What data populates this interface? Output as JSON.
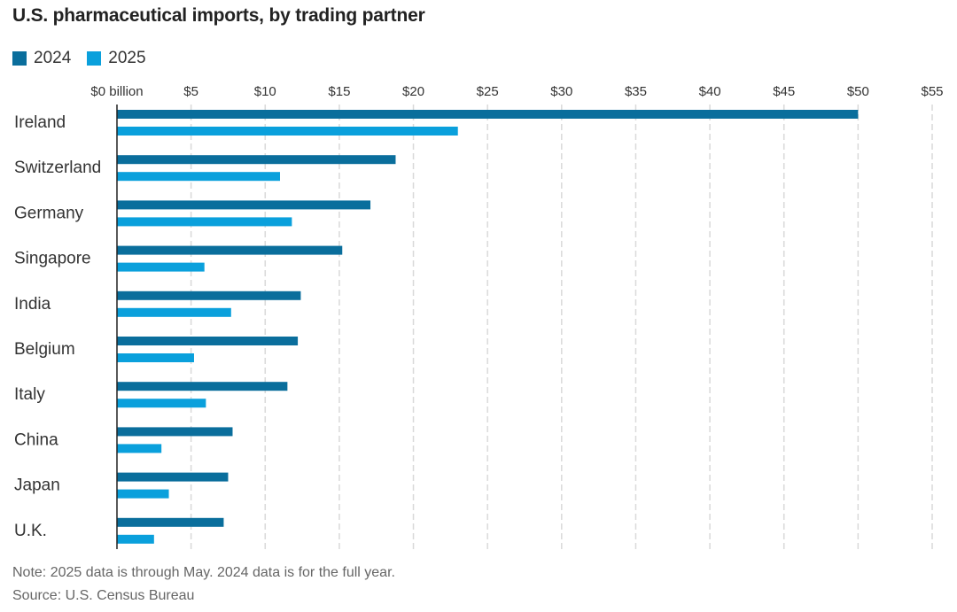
{
  "title": "U.S. pharmaceutical imports, by trading partner",
  "legend": [
    {
      "label": "2024",
      "color": "#0a6e9c"
    },
    {
      "label": "2025",
      "color": "#0aa0dc"
    }
  ],
  "footer": {
    "note": "Note: 2025 data is through May. 2024 data is for the full year.",
    "source": "Source: U.S. Census Bureau"
  },
  "chart_data": {
    "type": "bar",
    "orientation": "horizontal",
    "title": "U.S. pharmaceutical imports, by trading partner",
    "categories": [
      "Ireland",
      "Switzerland",
      "Germany",
      "Singapore",
      "India",
      "Belgium",
      "Italy",
      "China",
      "Japan",
      "U.K."
    ],
    "series": [
      {
        "name": "2024",
        "color": "#0a6e9c",
        "values": [
          50.0,
          18.8,
          17.1,
          15.2,
          12.4,
          12.2,
          11.5,
          7.8,
          7.5,
          7.2
        ]
      },
      {
        "name": "2025",
        "color": "#0aa0dc",
        "values": [
          23.0,
          11.0,
          11.8,
          5.9,
          7.7,
          5.2,
          6.0,
          3.0,
          3.5,
          2.5
        ]
      }
    ],
    "xlim": [
      0,
      55
    ],
    "x_ticks": [
      {
        "value": 0,
        "label": "$0 billion"
      },
      {
        "value": 5,
        "label": "$5"
      },
      {
        "value": 10,
        "label": "$10"
      },
      {
        "value": 15,
        "label": "$15"
      },
      {
        "value": 20,
        "label": "$20"
      },
      {
        "value": 25,
        "label": "$25"
      },
      {
        "value": 30,
        "label": "$30"
      },
      {
        "value": 35,
        "label": "$35"
      },
      {
        "value": 40,
        "label": "$40"
      },
      {
        "value": 45,
        "label": "$45"
      },
      {
        "value": 50,
        "label": "$50"
      },
      {
        "value": 55,
        "label": "$55"
      }
    ],
    "grid": true,
    "legend_position": "top-left"
  }
}
